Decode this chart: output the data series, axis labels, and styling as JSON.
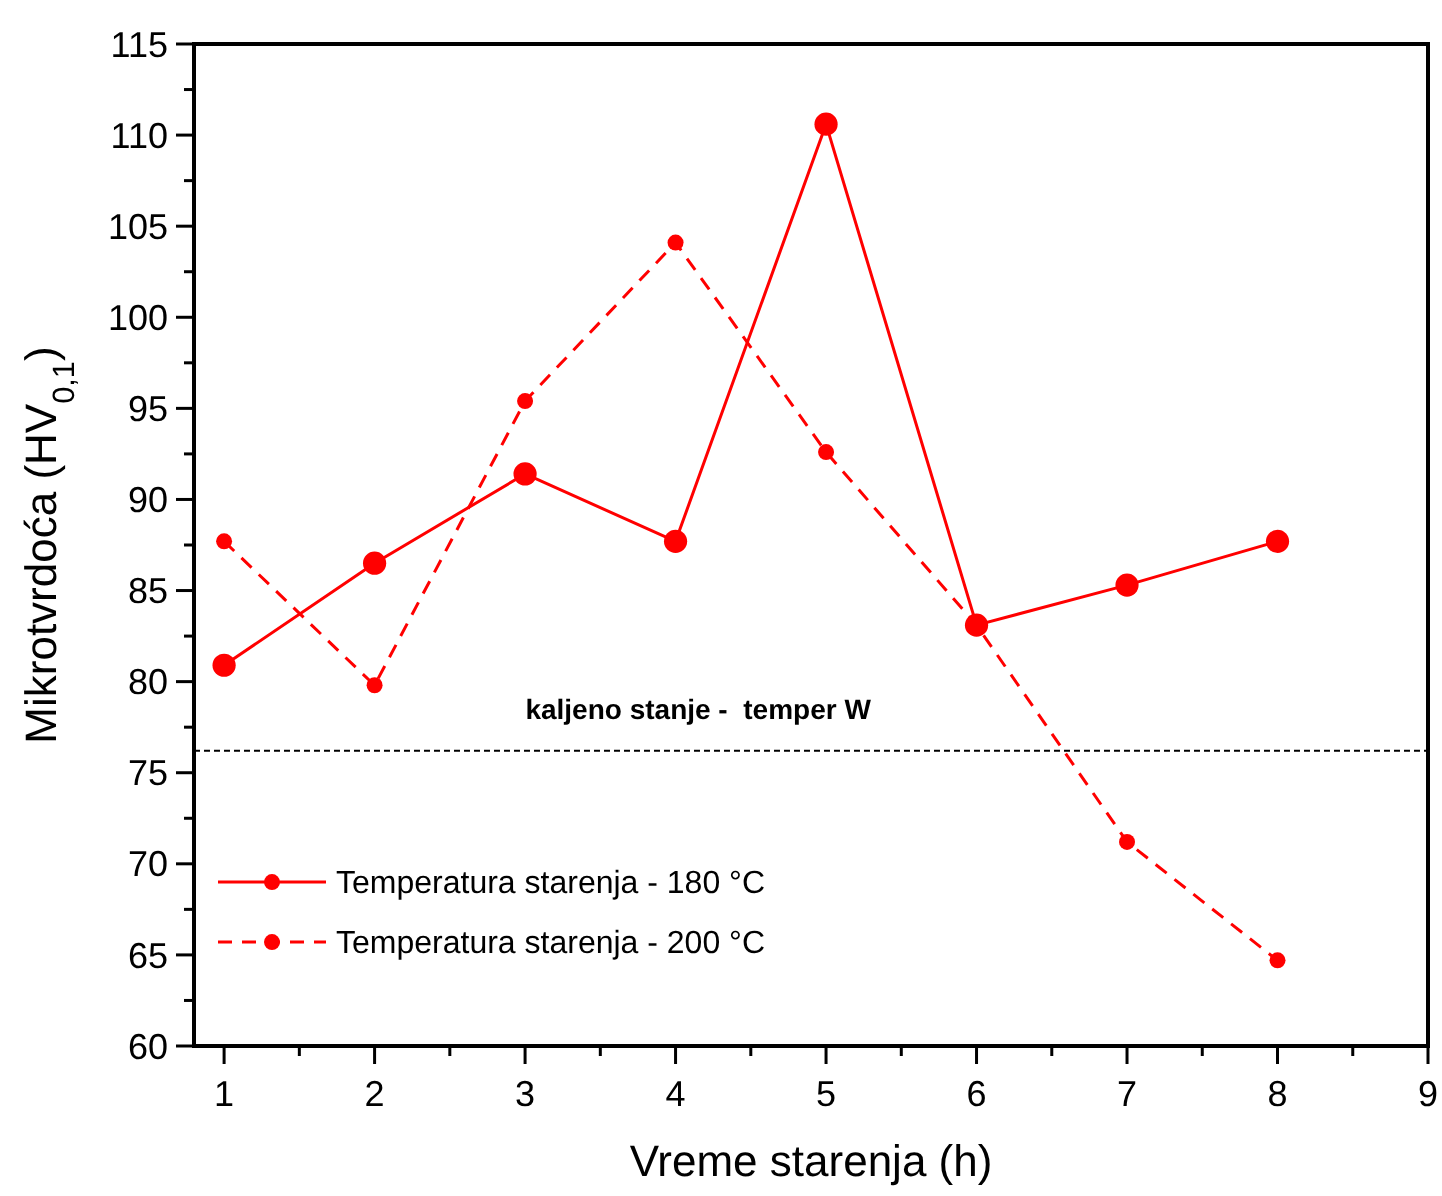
{
  "chart_data": {
    "type": "line",
    "xlabel": "Vreme starenja (h)",
    "ylabel": "Mikrotvrdoća (HV$_{0,1}$)",
    "x": [
      1,
      2,
      3,
      4,
      5,
      6,
      7,
      8
    ],
    "series": [
      {
        "name": "Temperatura starenja - 180 °C",
        "color": "#ff0000",
        "line_style": "solid",
        "values": [
          80.9,
          86.5,
          91.4,
          87.7,
          110.6,
          83.1,
          85.3,
          87.7
        ]
      },
      {
        "name": "Temperatura starenja - 200 °C",
        "color": "#ff0000",
        "line_style": "dashed",
        "values": [
          87.7,
          79.8,
          95.4,
          104.1,
          92.6,
          83.1,
          71.2,
          64.7
        ]
      }
    ],
    "marker": "circle",
    "xlim": [
      0.8,
      9
    ],
    "xticks": [
      1,
      {
        "value": 1.5,
        "label": null
      },
      2,
      {
        "value": 2.5,
        "label": null
      },
      3,
      {
        "value": 3.5,
        "label": null
      },
      4,
      {
        "value": 4.5,
        "label": null
      },
      5,
      {
        "value": 5.5,
        "label": null
      },
      6,
      {
        "value": 6.5,
        "label": null
      },
      7,
      {
        "value": 7.5,
        "label": null
      },
      8,
      {
        "value": 8.5,
        "label": null
      },
      9
    ],
    "ylim": [
      60,
      115
    ],
    "yticks": [
      60,
      {
        "value": 62.5,
        "label": null
      },
      65,
      {
        "value": 67.5,
        "label": null
      },
      70,
      {
        "value": 72.5,
        "label": null
      },
      75,
      {
        "value": 77.5,
        "label": null
      },
      80,
      {
        "value": 82.5,
        "label": null
      },
      85,
      {
        "value": 87.5,
        "label": null
      },
      90,
      {
        "value": 92.5,
        "label": null
      },
      95,
      {
        "value": 97.5,
        "label": null
      },
      100,
      {
        "value": 102.5,
        "label": null
      },
      105,
      {
        "value": 107.5,
        "label": null
      },
      110,
      {
        "value": 112.5,
        "label": null
      },
      115
    ],
    "ref_lines": [
      {
        "axis": "y",
        "value": 76.2,
        "label": "kaljeno stanje -  temper W",
        "color": "#000000",
        "line_style": "dashed"
      }
    ],
    "grid": false,
    "legend": "bottom left"
  }
}
